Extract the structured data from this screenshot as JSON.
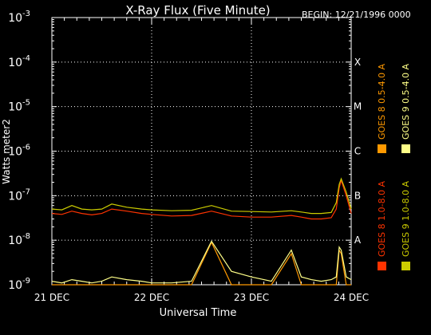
{
  "chart_data": {
    "type": "line",
    "title": "X-Ray Flux (Five Minute)",
    "begin_label": "BEGIN: 12/21/1996 0000",
    "xlabel": "Universal Time",
    "ylabel": "Watts meter2",
    "y_scale": "log",
    "ylim": [
      1e-09,
      0.001
    ],
    "y_ticks": [
      {
        "base": "10",
        "exp": "-9"
      },
      {
        "base": "10",
        "exp": "-8"
      },
      {
        "base": "10",
        "exp": "-7"
      },
      {
        "base": "10",
        "exp": "-6"
      },
      {
        "base": "10",
        "exp": "-5"
      },
      {
        "base": "10",
        "exp": "-4"
      },
      {
        "base": "10",
        "exp": "-3"
      }
    ],
    "x_ticks": [
      "21 DEC",
      "22 DEC",
      "23 DEC",
      "24 DEC"
    ],
    "xlim_days": [
      0,
      3
    ],
    "flare_classes": [
      {
        "label": "A",
        "exp": -8
      },
      {
        "label": "B",
        "exp": -7
      },
      {
        "label": "C",
        "exp": -6
      },
      {
        "label": "M",
        "exp": -5
      },
      {
        "label": "X",
        "exp": -4
      }
    ],
    "grid": true,
    "legend_placement": "right",
    "series": [
      {
        "name": "GOES 8 1.0-8.0 A",
        "color": "#ff3300",
        "x": [
          0,
          0.1,
          0.2,
          0.3,
          0.4,
          0.5,
          0.6,
          0.75,
          0.9,
          1.0,
          1.2,
          1.4,
          1.6,
          1.8,
          2.0,
          2.2,
          2.4,
          2.5,
          2.6,
          2.7,
          2.8,
          2.85,
          2.88,
          2.9,
          2.95,
          3.0
        ],
        "values": [
          4e-08,
          3.8e-08,
          4.5e-08,
          4e-08,
          3.7e-08,
          4e-08,
          5e-08,
          4.5e-08,
          4e-08,
          3.8e-08,
          3.5e-08,
          3.6e-08,
          4.5e-08,
          3.5e-08,
          3.3e-08,
          3.3e-08,
          3.6e-08,
          3.3e-08,
          3e-08,
          3e-08,
          3.2e-08,
          5e-08,
          1.5e-07,
          2.2e-07,
          1e-07,
          4e-08
        ]
      },
      {
        "name": "GOES 8 0.5-4.0 A",
        "color": "#ff9900",
        "x": [
          0,
          0.1,
          0.2,
          0.3,
          0.4,
          0.5,
          0.6,
          0.75,
          0.9,
          1.0,
          1.2,
          1.4,
          1.6,
          1.8,
          2.0,
          2.2,
          2.4,
          2.5,
          2.6,
          2.7,
          2.8,
          2.85,
          2.88,
          2.9,
          2.95,
          3.0
        ],
        "values": [
          1e-09,
          1e-09,
          1e-09,
          1e-09,
          1e-09,
          1e-09,
          1e-09,
          1e-09,
          1e-09,
          1e-09,
          1e-09,
          1e-09,
          9e-09,
          1e-09,
          1e-09,
          1e-09,
          5e-09,
          1e-09,
          1e-09,
          1e-09,
          1e-09,
          1e-09,
          6e-09,
          5e-09,
          1e-09,
          1e-09
        ]
      },
      {
        "name": "GOES 9 1.0-8.0 A",
        "color": "#cccc00",
        "x": [
          0,
          0.1,
          0.2,
          0.3,
          0.4,
          0.5,
          0.6,
          0.75,
          0.9,
          1.0,
          1.2,
          1.4,
          1.6,
          1.8,
          2.0,
          2.2,
          2.4,
          2.5,
          2.6,
          2.7,
          2.8,
          2.85,
          2.88,
          2.9,
          2.95,
          3.0
        ],
        "values": [
          5e-08,
          4.8e-08,
          6e-08,
          5e-08,
          4.8e-08,
          5e-08,
          6.5e-08,
          5.5e-08,
          5e-08,
          4.8e-08,
          4.6e-08,
          4.7e-08,
          6e-08,
          4.5e-08,
          4.4e-08,
          4.3e-08,
          4.6e-08,
          4.3e-08,
          4e-08,
          4e-08,
          4.2e-08,
          7e-08,
          1.8e-07,
          2.4e-07,
          1.2e-07,
          5e-08
        ]
      },
      {
        "name": "GOES 9 0.5-4.0 A",
        "color": "#ffff88",
        "x": [
          0,
          0.1,
          0.2,
          0.3,
          0.4,
          0.5,
          0.6,
          0.75,
          0.9,
          1.0,
          1.2,
          1.4,
          1.6,
          1.8,
          2.0,
          2.2,
          2.4,
          2.5,
          2.6,
          2.7,
          2.8,
          2.85,
          2.88,
          2.9,
          2.95,
          3.0
        ],
        "values": [
          1.2e-09,
          1.1e-09,
          1.3e-09,
          1.2e-09,
          1.1e-09,
          1.2e-09,
          1.5e-09,
          1.3e-09,
          1.2e-09,
          1.1e-09,
          1.1e-09,
          1.2e-09,
          9.5e-09,
          2e-09,
          1.5e-09,
          1.2e-09,
          6e-09,
          1.5e-09,
          1.3e-09,
          1.2e-09,
          1.3e-09,
          1.5e-09,
          7e-09,
          6e-09,
          1.5e-09,
          1.3e-09
        ]
      }
    ]
  }
}
